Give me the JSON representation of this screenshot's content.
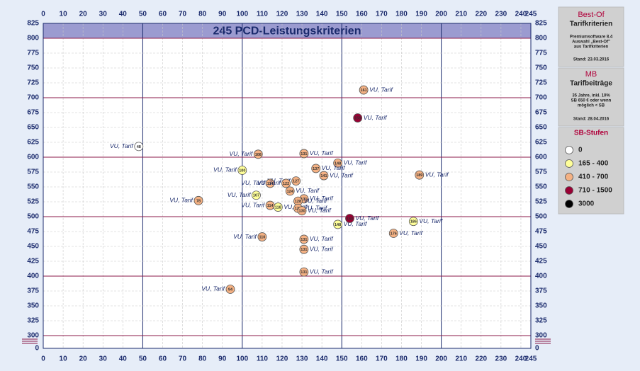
{
  "chart_data": {
    "type": "scatter",
    "title": "245 PCD-Leistungskriterien",
    "xlim": [
      0,
      245
    ],
    "xticks": [
      0,
      10,
      20,
      30,
      40,
      50,
      60,
      70,
      80,
      90,
      100,
      110,
      120,
      130,
      140,
      150,
      160,
      170,
      180,
      190,
      200,
      210,
      220,
      230,
      240,
      245
    ],
    "ylim": [
      0,
      825
    ],
    "yticks": [
      0,
      300,
      325,
      350,
      375,
      400,
      425,
      450,
      475,
      500,
      525,
      550,
      575,
      600,
      625,
      650,
      675,
      700,
      725,
      750,
      775,
      800,
      825
    ],
    "axis_break": true,
    "grid": true,
    "legend_title": "SB-Stufen",
    "series": [
      {
        "name": "0",
        "color": "#ffffff",
        "x": [
          48
        ],
        "y": [
          618
        ],
        "point_labels": [
          "VU, Tarif"
        ]
      },
      {
        "name": "165 - 400",
        "color": "#ffff99",
        "x": [
          100,
          107,
          118,
          186,
          148
        ],
        "y": [
          578,
          536,
          516,
          492,
          487
        ],
        "point_labels": [
          "VU, Tarif",
          "VU, Tarif",
          "VU, Tarif",
          "VU, Tarif",
          "VU, Tarif"
        ]
      },
      {
        "name": "410 - 700",
        "color": "#f4b183",
        "x": [
          161,
          108,
          131,
          148,
          137,
          189,
          141,
          127,
          114,
          122,
          124,
          78,
          131,
          128,
          114,
          128,
          130,
          176,
          110,
          131,
          131,
          131,
          94
        ],
        "y": [
          713,
          605,
          606,
          590,
          581,
          570,
          569,
          560,
          556,
          556,
          543,
          527,
          530,
          526,
          519,
          514,
          510,
          472,
          466,
          462,
          445,
          407,
          378
        ],
        "point_labels": [
          "VU, Tarif",
          "VU, Tarif",
          "VU, Tarif",
          "VU, Tarif",
          "VU, Tarif",
          "VU, Tarif",
          "VU, Tarif",
          "VU, Tarif",
          "VU, Tarif",
          "VU, Tarif",
          "VU, Tarif",
          "VU, Tarif",
          "VU, Tarif",
          "VU, Tarif",
          "VU, Tarif",
          "VU, Tarif",
          "VU, Tarif",
          "VU, Tarif",
          "VU, Tarif",
          "VU, Tarif",
          "VU, Tarif",
          "VU, Tarif",
          "VU, Tarif"
        ]
      },
      {
        "name": "710 - 1500",
        "color": "#990033",
        "x": [
          158,
          154
        ],
        "y": [
          666,
          497
        ],
        "point_labels": [
          "VU, Tarif",
          "VU, Tarif"
        ]
      },
      {
        "name": "3000",
        "color": "#000000",
        "x": [],
        "y": [],
        "point_labels": []
      }
    ]
  },
  "panel": {
    "box1": {
      "head": "Best-Of",
      "title": "Tarifkriterien",
      "lines": [
        "Premiumsoftware  8.4",
        "Auswahl  „Best-Of\"",
        "aus Tarifkriterien"
      ],
      "date": "Stand: 23.03.2016"
    },
    "box2": {
      "head": "MB",
      "title": "Tarifbeiträge",
      "lines": [
        "35 Jahre,  inkl.  10%",
        "SB 650 € oder wenn",
        "möglich < SB"
      ],
      "date": "Stand: 28.04.2016"
    }
  }
}
